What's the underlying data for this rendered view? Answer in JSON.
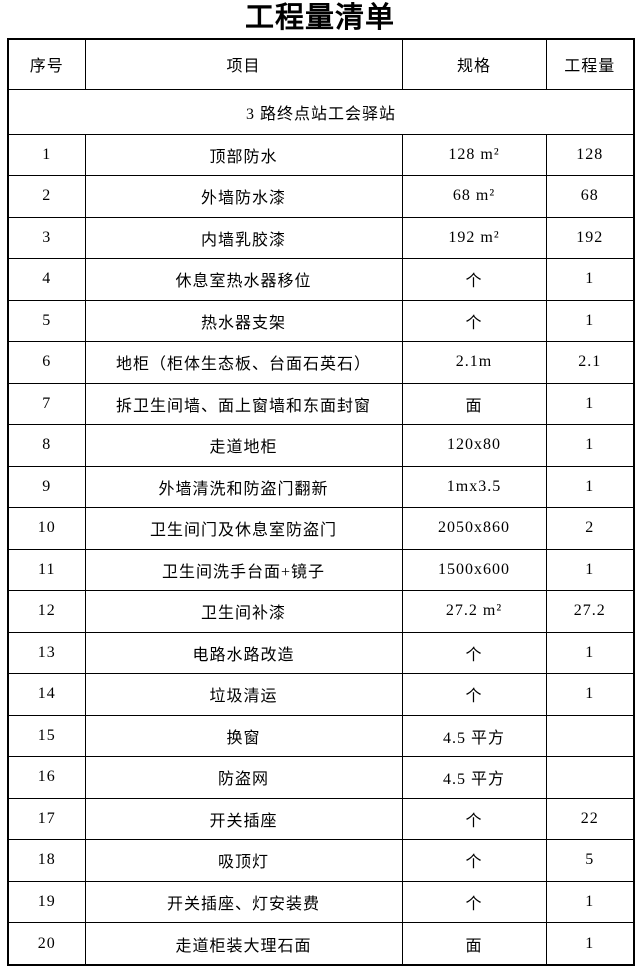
{
  "page": {
    "title": "工程量清单"
  },
  "colors": {
    "text": "#000000",
    "border": "#000000",
    "background": "#ffffff"
  },
  "table": {
    "headers": {
      "no": "序号",
      "item": "项目",
      "spec": "规格",
      "qty": "工程量"
    },
    "section_row": "3 路终点站工会驿站",
    "rows": [
      {
        "no": "1",
        "item": "顶部防水",
        "spec": "128 m²",
        "qty": "128"
      },
      {
        "no": "2",
        "item": "外墙防水漆",
        "spec": "68 m²",
        "qty": "68"
      },
      {
        "no": "3",
        "item": "内墙乳胶漆",
        "spec": "192 m²",
        "qty": "192"
      },
      {
        "no": "4",
        "item": "休息室热水器移位",
        "spec": "个",
        "qty": "1"
      },
      {
        "no": "5",
        "item": "热水器支架",
        "spec": "个",
        "qty": "1"
      },
      {
        "no": "6",
        "item": "地柜（柜体生态板、台面石英石）",
        "spec": "2.1m",
        "qty": "2.1"
      },
      {
        "no": "7",
        "item": "拆卫生间墙、面上窗墙和东面封窗",
        "spec": "面",
        "qty": "1"
      },
      {
        "no": "8",
        "item": "走道地柜",
        "spec": "120x80",
        "qty": "1"
      },
      {
        "no": "9",
        "item": "外墙清洗和防盗门翻新",
        "spec": "1mx3.5",
        "qty": "1"
      },
      {
        "no": "10",
        "item": "卫生间门及休息室防盗门",
        "spec": "2050x860",
        "qty": "2"
      },
      {
        "no": "11",
        "item": "卫生间洗手台面+镜子",
        "spec": "1500x600",
        "qty": "1"
      },
      {
        "no": "12",
        "item": "卫生间补漆",
        "spec": "27.2 m²",
        "qty": "27.2"
      },
      {
        "no": "13",
        "item": "电路水路改造",
        "spec": "个",
        "qty": "1"
      },
      {
        "no": "14",
        "item": "垃圾清运",
        "spec": "个",
        "qty": "1"
      },
      {
        "no": "15",
        "item": "换窗",
        "spec": "4.5 平方",
        "qty": ""
      },
      {
        "no": "16",
        "item": "防盗网",
        "spec": "4.5 平方",
        "qty": ""
      },
      {
        "no": "17",
        "item": "开关插座",
        "spec": "个",
        "qty": "22"
      },
      {
        "no": "18",
        "item": "吸顶灯",
        "spec": "个",
        "qty": "5"
      },
      {
        "no": "19",
        "item": "开关插座、灯安装费",
        "spec": "个",
        "qty": "1"
      },
      {
        "no": "20",
        "item": "走道柜装大理石面",
        "spec": "面",
        "qty": "1"
      }
    ]
  }
}
